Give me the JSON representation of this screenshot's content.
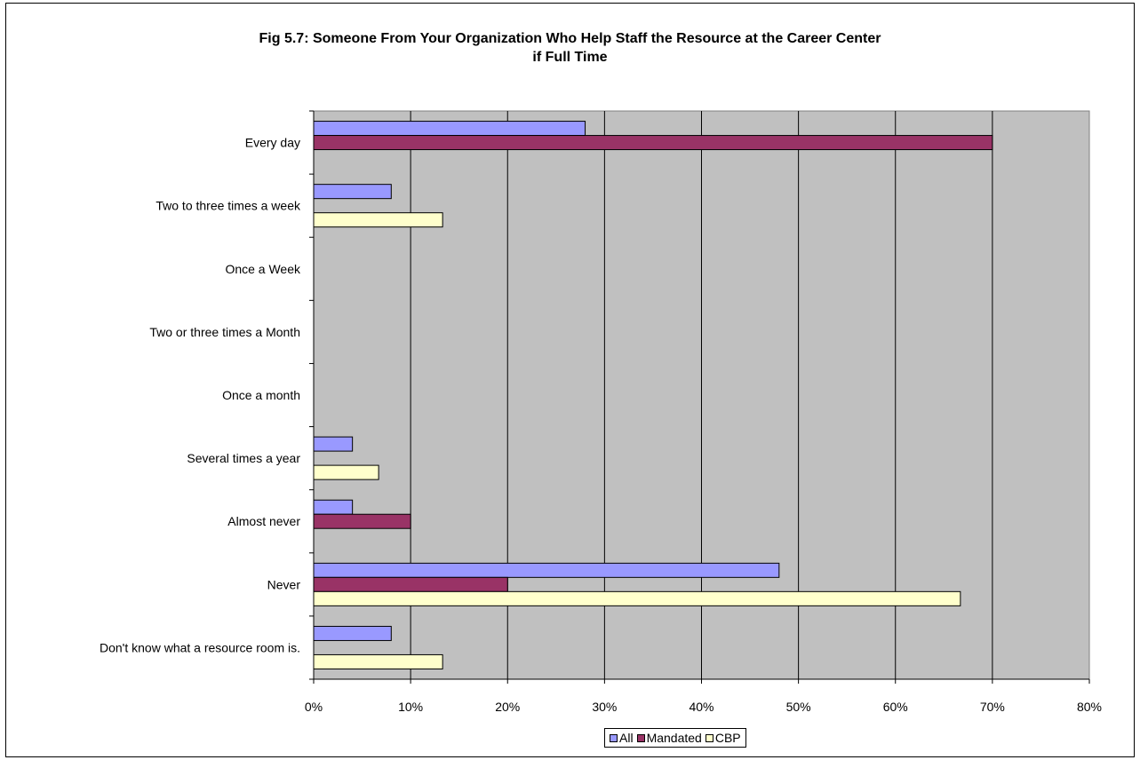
{
  "chart_data": {
    "type": "bar",
    "orientation": "horizontal",
    "title_line1": "Fig 5.7: Someone From Your Organization Who Help Staff the Resource at the Career Center",
    "title_line2": "if Full Time",
    "categories": [
      "Every day",
      "Two to three times a week",
      "Once a Week",
      "Two or three times a Month",
      "Once a month",
      "Several times a year",
      "Almost never",
      "Never",
      "Don't know what a resource room is."
    ],
    "series": [
      {
        "name": "All",
        "color": "#9999FF",
        "values": [
          28,
          8,
          0,
          0,
          0,
          4,
          4,
          48,
          8
        ]
      },
      {
        "name": "Mandated",
        "color": "#993366",
        "values": [
          70,
          0,
          0,
          0,
          0,
          0,
          10,
          20,
          0
        ]
      },
      {
        "name": "CBP",
        "color": "#FFFFCC",
        "values": [
          0,
          13.3,
          0,
          0,
          0,
          6.7,
          0,
          66.7,
          13.3
        ]
      }
    ],
    "xlim": [
      0,
      80
    ],
    "xticks": [
      "0%",
      "10%",
      "20%",
      "30%",
      "40%",
      "50%",
      "60%",
      "70%",
      "80%"
    ],
    "grid": true,
    "plot_background": "#C0C0C0",
    "legend_position": "bottom"
  }
}
